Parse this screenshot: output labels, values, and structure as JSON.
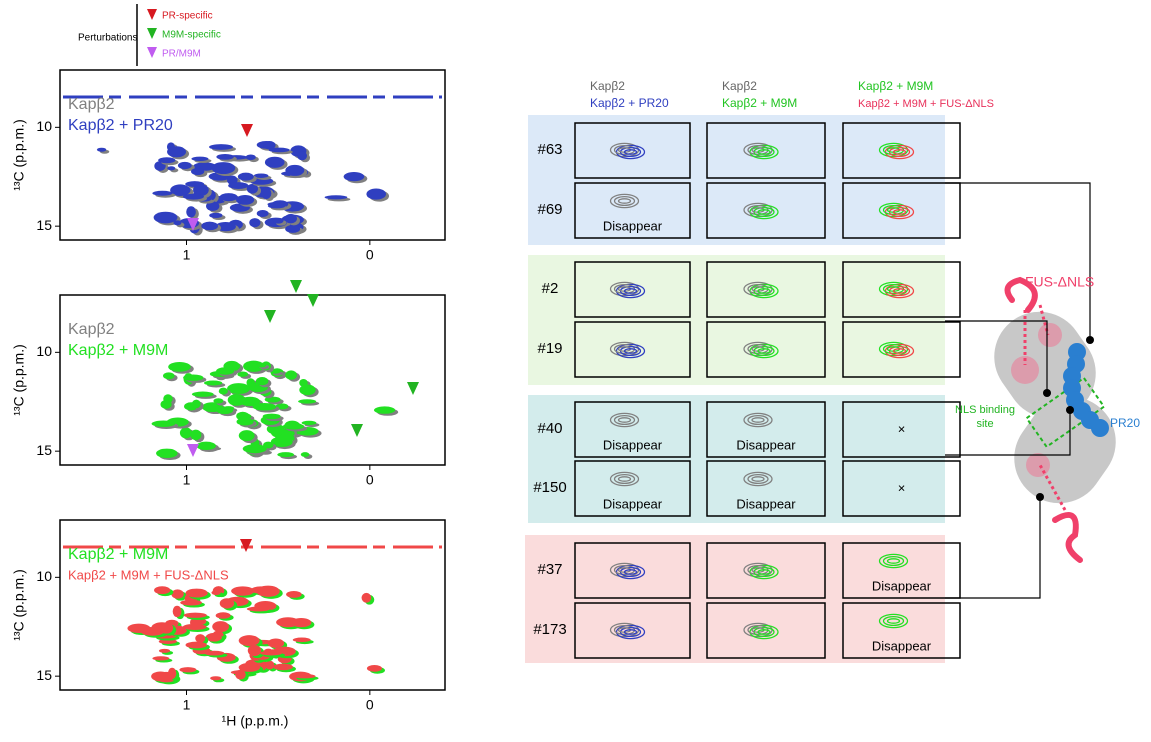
{
  "legend": {
    "title": "Perturbations",
    "items": [
      {
        "label": "PR-specific",
        "color": "#d71920"
      },
      {
        "label": "M9M-specific",
        "color": "#22b422"
      },
      {
        "label": "PR/M9M",
        "color": "#c05cf0"
      }
    ]
  },
  "spectra": {
    "y_label": "¹³C (p.p.m.)",
    "x_label": "¹H (p.p.m.)",
    "xlim": [
      1.69,
      -0.41
    ],
    "ylim": [
      7.1,
      15.7
    ],
    "xticks": [
      1,
      0
    ],
    "yticks": [
      10,
      15
    ],
    "panels": [
      {
        "series": [
          {
            "name": "Kapβ2",
            "color": "#808080"
          },
          {
            "name": "Kapβ2 + PR20",
            "color": "#2f3fc0"
          }
        ]
      },
      {
        "series": [
          {
            "name": "Kapβ2",
            "color": "#808080"
          },
          {
            "name": "Kapβ2 + M9M",
            "color": "#22e022"
          }
        ]
      },
      {
        "series": [
          {
            "name": "Kapβ2 + M9M",
            "color": "#22e022"
          },
          {
            "name": "Kapβ2 + M9M + FUS-ΔNLS",
            "color": "#f04848"
          }
        ]
      }
    ]
  },
  "columns": [
    {
      "lines": [
        {
          "text": "Kapβ2",
          "color": "#666"
        },
        {
          "text": "Kapβ2 + PR20",
          "color": "#2f3fc0"
        }
      ]
    },
    {
      "lines": [
        {
          "text": "Kapβ2",
          "color": "#666"
        },
        {
          "text": "Kapβ2 + M9M",
          "color": "#22c422"
        }
      ]
    },
    {
      "lines": [
        {
          "text": "Kapβ2 + M9M",
          "color": "#22c422"
        },
        {
          "text": "Kapβ2 + M9M + FUS-ΔNLS",
          "color": "#e8305a"
        }
      ]
    }
  ],
  "rows": [
    {
      "label": "#63",
      "cells": [
        null,
        null,
        null
      ]
    },
    {
      "label": "#69",
      "cells": [
        "Disappear",
        null,
        null
      ]
    },
    {
      "label": "#2",
      "cells": [
        null,
        null,
        null
      ]
    },
    {
      "label": "#19",
      "cells": [
        null,
        null,
        null
      ]
    },
    {
      "label": "#40",
      "cells": [
        "Disappear",
        "Disappear",
        "×"
      ]
    },
    {
      "label": "#150",
      "cells": [
        "Disappear",
        "Disappear",
        "×"
      ]
    },
    {
      "label": "#37",
      "cells": [
        null,
        null,
        "Disappear"
      ]
    },
    {
      "label": "#173",
      "cells": [
        null,
        null,
        "Disappear"
      ]
    }
  ],
  "schematic": {
    "fus": "FUS-ΔNLS",
    "site": [
      "NLS binding",
      "site"
    ],
    "pr": "PR20"
  }
}
